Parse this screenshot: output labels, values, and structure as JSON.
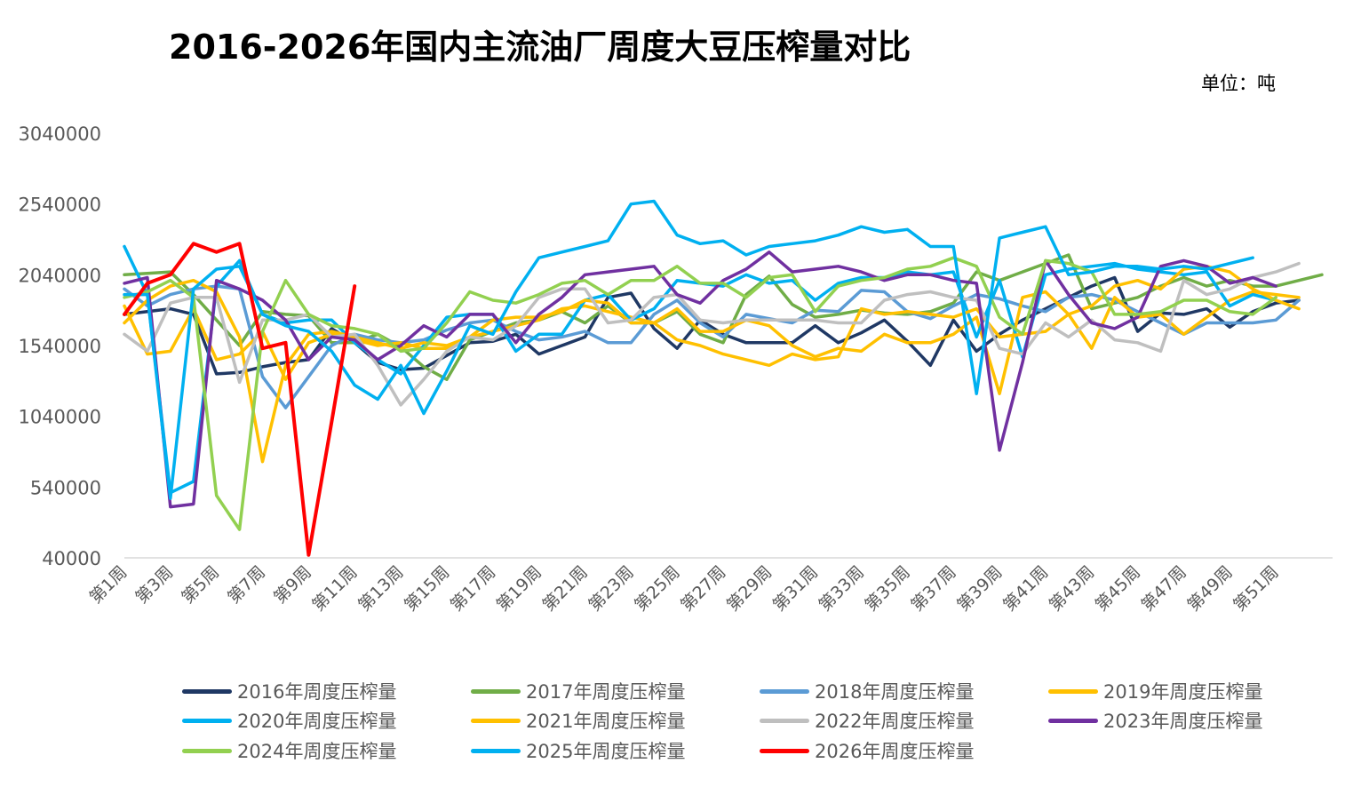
{
  "title": "2016-2026年国内主流油厂周度大豆压榨量对比",
  "unit": "单位：吨",
  "chart_data": {
    "type": "line",
    "title": "2016-2026年国内主流油厂周度大豆压榨量对比",
    "ylim": [
      40000,
      3040000
    ],
    "yticks": [
      "3040000",
      "2540000",
      "2040000",
      "1540000",
      "1040000",
      "540000",
      "40000"
    ],
    "xticklabels": [
      "第1周",
      "第3周",
      "第5周",
      "第7周",
      "第9周",
      "第11周",
      "第13周",
      "第15周",
      "第17周",
      "第19周",
      "第21周",
      "第23周",
      "第25周",
      "第27周",
      "第29周",
      "第31周",
      "第33周",
      "第35周",
      "第37周",
      "第39周",
      "第41周",
      "第43周",
      "第45周",
      "第47周",
      "第49周",
      "第51周"
    ],
    "grid": false,
    "legend_position": "bottom",
    "series": [
      {
        "name": "2016年周度压榨量",
        "color": "#1f3864",
        "values": [
          1760000,
          1780000,
          1800000,
          1760000,
          1340000,
          1350000,
          1390000,
          1420000,
          1440000,
          1660000,
          1560000,
          1420000,
          1370000,
          1380000,
          1470000,
          1560000,
          1570000,
          1620000,
          1480000,
          1540000,
          1600000,
          1880000,
          1910000,
          1660000,
          1520000,
          1720000,
          1620000,
          1560000,
          1560000,
          1560000,
          1680000,
          1560000,
          1630000,
          1720000,
          1570000,
          1400000,
          1720000,
          1500000,
          1620000,
          1720000,
          1800000,
          1880000,
          1960000,
          2020000,
          1640000,
          1770000,
          1760000,
          1800000,
          1670000,
          1780000,
          1840000,
          1860000,
          null
        ]
      },
      {
        "name": "2017年周度压榨量",
        "color": "#70ad47",
        "values": [
          2040000,
          2050000,
          2060000,
          1900000,
          1720000,
          1540000,
          1780000,
          1760000,
          1750000,
          1560000,
          1560000,
          1620000,
          1530000,
          1390000,
          1300000,
          1580000,
          1640000,
          1700000,
          1720000,
          1780000,
          1700000,
          1820000,
          1700000,
          1700000,
          1780000,
          1620000,
          1560000,
          1900000,
          2030000,
          1830000,
          1740000,
          1760000,
          1790000,
          1770000,
          1760000,
          1780000,
          1840000,
          2060000,
          2000000,
          2060000,
          2120000,
          2180000,
          1800000,
          1840000,
          1880000,
          1960000,
          2020000,
          1960000,
          2000000,
          1960000,
          1960000,
          2000000,
          2040000
        ]
      },
      {
        "name": "2018年周度压榨量",
        "color": "#5b9bd5",
        "values": [
          1940000,
          1820000,
          1900000,
          1940000,
          1960000,
          1940000,
          1320000,
          1100000,
          1320000,
          1540000,
          1620000,
          1580000,
          1560000,
          1580000,
          1650000,
          1700000,
          1720000,
          1640000,
          1580000,
          1600000,
          1640000,
          1560000,
          1560000,
          1760000,
          1860000,
          1700000,
          1600000,
          1760000,
          1730000,
          1700000,
          1790000,
          1780000,
          1930000,
          1920000,
          1780000,
          1730000,
          1820000,
          1900000,
          1870000,
          1820000,
          1780000,
          1880000,
          1900000,
          1860000,
          1780000,
          1700000,
          1620000,
          1700000,
          1700000,
          1700000,
          1720000,
          1860000,
          null
        ]
      },
      {
        "name": "2019年周度压榨量",
        "color": "#ffc000",
        "values": [
          1820000,
          1480000,
          1500000,
          1800000,
          1440000,
          1480000,
          1640000,
          1300000,
          1560000,
          1620000,
          1580000,
          1540000,
          1560000,
          1520000,
          1520000,
          1600000,
          1640000,
          1680000,
          1720000,
          1800000,
          1820000,
          1780000,
          1740000,
          1700000,
          1800000,
          1640000,
          1640000,
          1720000,
          1680000,
          1540000,
          1460000,
          1520000,
          1500000,
          1620000,
          1560000,
          1560000,
          1620000,
          1740000,
          1200000,
          1880000,
          1920000,
          1760000,
          1520000,
          1880000,
          1740000,
          1760000,
          1620000,
          1740000,
          1860000,
          1920000,
          1900000,
          1880000,
          null
        ]
      },
      {
        "name": "2020年周度压榨量",
        "color": "#00b0f0",
        "values": [
          2240000,
          1900000,
          500000,
          580000,
          1960000,
          2140000,
          1760000,
          1700000,
          1720000,
          1720000,
          1560000,
          1440000,
          1340000,
          1540000,
          1740000,
          1760000,
          1760000,
          1500000,
          1620000,
          1620000,
          1860000,
          1900000,
          1720000,
          1800000,
          2000000,
          1980000,
          1960000,
          2040000,
          1980000,
          2000000,
          1860000,
          1980000,
          2020000,
          2020000,
          2060000,
          2040000,
          2060000,
          1600000,
          2000000,
          1460000,
          2040000,
          2080000,
          2100000,
          2120000,
          2080000,
          2060000,
          2040000,
          2060000,
          1820000,
          1900000,
          1860000,
          null,
          null
        ]
      },
      {
        "name": "2021年周度压榨量",
        "color": "#ffc000",
        "values": [
          1700000,
          1860000,
          1960000,
          2000000,
          1920000,
          1600000,
          720000,
          1400000,
          1620000,
          1640000,
          1600000,
          1560000,
          1520000,
          1560000,
          1540000,
          1600000,
          1720000,
          1740000,
          1740000,
          1780000,
          1860000,
          1840000,
          1700000,
          1700000,
          1580000,
          1540000,
          1480000,
          1440000,
          1400000,
          1480000,
          1440000,
          1460000,
          1800000,
          1760000,
          1780000,
          1760000,
          1740000,
          1800000,
          1600000,
          1620000,
          1640000,
          1760000,
          1820000,
          1960000,
          2000000,
          1940000,
          2080000,
          2100000,
          2060000,
          1940000,
          1860000,
          1800000,
          null
        ]
      },
      {
        "name": "2022年周度压榨量",
        "color": "#bfbfbf",
        "values": [
          1620000,
          1500000,
          1840000,
          1880000,
          1880000,
          1280000,
          1720000,
          1720000,
          1760000,
          1600000,
          1620000,
          1400000,
          1120000,
          1300000,
          1500000,
          1600000,
          1580000,
          1680000,
          1880000,
          1940000,
          1940000,
          1700000,
          1720000,
          1880000,
          1900000,
          1720000,
          1700000,
          1720000,
          1720000,
          1720000,
          1720000,
          1700000,
          1700000,
          1860000,
          1900000,
          1920000,
          1880000,
          1860000,
          1520000,
          1480000,
          1700000,
          1600000,
          1720000,
          1580000,
          1560000,
          1500000,
          2000000,
          1900000,
          1940000,
          2020000,
          2060000,
          2120000,
          null
        ]
      },
      {
        "name": "2023年周度压榨量",
        "color": "#7030a0",
        "values": [
          1980000,
          2020000,
          400000,
          420000,
          2000000,
          1940000,
          1860000,
          1720000,
          1440000,
          1600000,
          1580000,
          1440000,
          1540000,
          1680000,
          1600000,
          1760000,
          1760000,
          1560000,
          1760000,
          1880000,
          2040000,
          2060000,
          2080000,
          2100000,
          1900000,
          1840000,
          2000000,
          2080000,
          2200000,
          2060000,
          2080000,
          2100000,
          2060000,
          2000000,
          2040000,
          2040000,
          2000000,
          1980000,
          800000,
          1420000,
          2140000,
          1900000,
          1700000,
          1660000,
          1740000,
          2100000,
          2140000,
          2100000,
          1980000,
          2020000,
          1960000,
          null,
          null
        ]
      },
      {
        "name": "2024年周度压榨量",
        "color": "#92d050",
        "values": [
          1880000,
          1920000,
          2000000,
          1880000,
          480000,
          240000,
          1640000,
          2000000,
          1760000,
          1680000,
          1660000,
          1620000,
          1500000,
          1520000,
          1700000,
          1920000,
          1860000,
          1840000,
          1900000,
          1980000,
          2000000,
          1900000,
          2000000,
          2000000,
          2100000,
          1980000,
          1980000,
          1880000,
          2020000,
          2040000,
          1780000,
          1960000,
          2000000,
          2020000,
          2080000,
          2100000,
          2160000,
          2100000,
          1740000,
          1620000,
          2140000,
          2120000,
          2060000,
          1760000,
          1760000,
          1780000,
          1860000,
          1860000,
          1780000,
          1760000,
          1880000,
          null,
          null
        ]
      },
      {
        "name": "2025年周度压榨量",
        "color": "#00b0f0",
        "values": [
          1900000,
          1900000,
          460000,
          1940000,
          2080000,
          2100000,
          1760000,
          1680000,
          1640000,
          1500000,
          1260000,
          1160000,
          1400000,
          1060000,
          1360000,
          1680000,
          1620000,
          1920000,
          2160000,
          2200000,
          2240000,
          2280000,
          2540000,
          2560000,
          2320000,
          2260000,
          2280000,
          2180000,
          2240000,
          2260000,
          2280000,
          2320000,
          2380000,
          2340000,
          2360000,
          2240000,
          2240000,
          1200000,
          2300000,
          2340000,
          2380000,
          2040000,
          2060000,
          2100000,
          2100000,
          2080000,
          2100000,
          2080000,
          2120000,
          2160000,
          null,
          null,
          null
        ]
      },
      {
        "name": "2026年周度压榨量",
        "color": "#ff0000",
        "values": [
          1760000,
          1980000,
          2040000,
          2260000,
          2200000,
          2260000,
          1520000,
          1560000,
          60000,
          1000000,
          1960000,
          null,
          null,
          null,
          null,
          null,
          null,
          null,
          null,
          null,
          null,
          null,
          null,
          null,
          null,
          null,
          null,
          null,
          null,
          null,
          null,
          null,
          null,
          null,
          null,
          null,
          null,
          null,
          null,
          null,
          null,
          null,
          null,
          null,
          null,
          null,
          null,
          null,
          null,
          null,
          null,
          null,
          null
        ]
      }
    ]
  }
}
